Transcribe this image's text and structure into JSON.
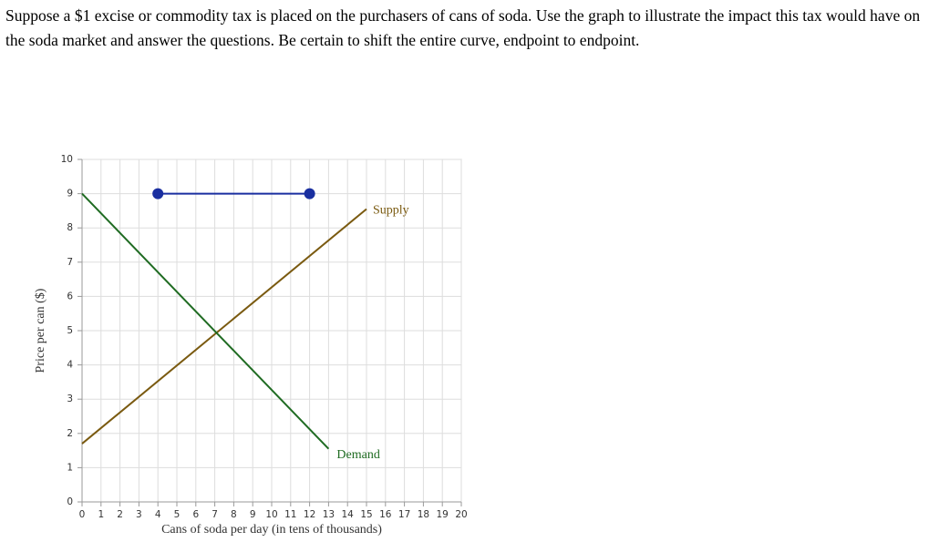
{
  "question": "Suppose a $1 excise or commodity tax is placed on the purchasers of cans of soda. Use the graph to illustrate the impact this tax would have on the soda market and answer the questions. Be certain to shift the entire curve, endpoint to endpoint.",
  "chart_data": {
    "type": "line",
    "x_label": "Cans of soda per day (in tens of thousands)",
    "y_label": "Price per can ($)",
    "xlim": [
      0,
      20
    ],
    "ylim": [
      0,
      10
    ],
    "xticks": [
      0,
      1,
      2,
      3,
      4,
      5,
      6,
      7,
      8,
      9,
      10,
      11,
      12,
      13,
      14,
      15,
      16,
      17,
      18,
      19,
      20
    ],
    "yticks": [
      0,
      1,
      2,
      3,
      4,
      5,
      6,
      7,
      8,
      9,
      10
    ],
    "grid": true,
    "series": [
      {
        "name": "Supply",
        "color": "#7a5a10",
        "x": [
          0,
          15
        ],
        "values": [
          1.7,
          8.55
        ]
      },
      {
        "name": "Demand",
        "color": "#1f6b22",
        "x": [
          0,
          13
        ],
        "values": [
          9,
          1.55
        ]
      },
      {
        "color": "#1a2fa0",
        "x": [
          4,
          12
        ],
        "values": [
          9,
          9
        ],
        "markers": true
      }
    ]
  }
}
